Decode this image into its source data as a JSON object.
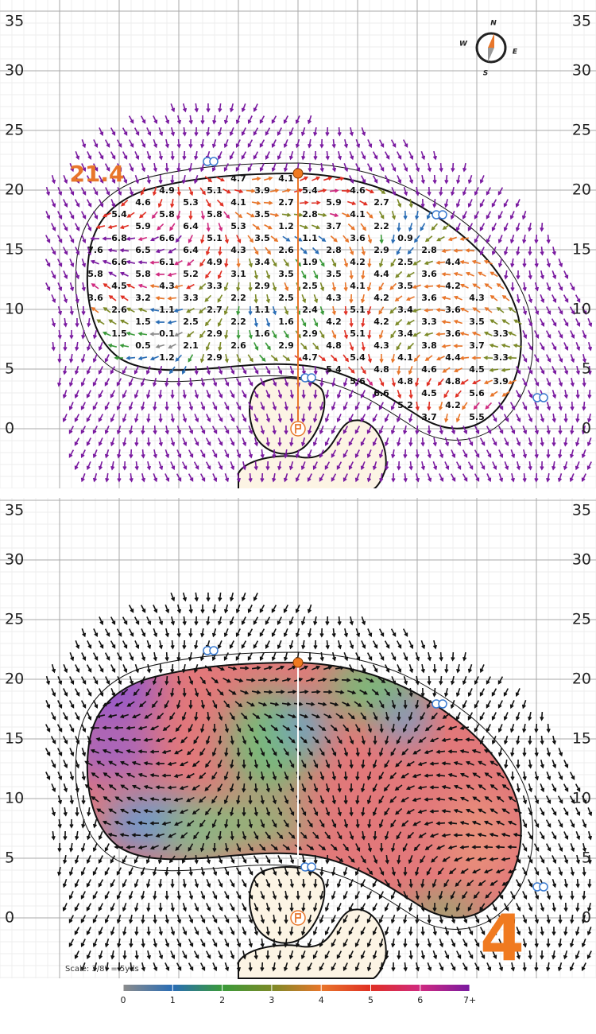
{
  "hole_number": "4",
  "pin_distance": "21.4",
  "scale_note": "Scale: 3/8\" = 5yds",
  "compass": {
    "n": "N",
    "e": "E",
    "s": "S",
    "w": "W"
  },
  "y_axis": {
    "ticks": [
      0,
      5,
      10,
      15,
      20,
      25,
      30,
      35
    ]
  },
  "slope_labels": [
    [
      "4.7",
      "4.1"
    ],
    [
      "4.9",
      "5.1",
      "3.9",
      "5.4",
      "4.6"
    ],
    [
      "4.6",
      "5.3",
      "4.1",
      "2.7",
      "5.9",
      "2.7"
    ],
    [
      "5.4",
      "5.8",
      "5.8",
      "3.5",
      "2.8",
      "4.1"
    ],
    [
      "5.9",
      "6.4",
      "5.3",
      "1.2",
      "3.7",
      "2.2"
    ],
    [
      "6.8",
      "6.6",
      "5.1",
      "3.5",
      "1.1",
      "3.6",
      "0.9"
    ],
    [
      "7.6",
      "6.5",
      "6.4",
      "4.3",
      "2.6",
      "2.8",
      "2.9",
      "2.8"
    ],
    [
      "6.6",
      "6.1",
      "4.9",
      "3.4",
      "1.9",
      "4.2",
      "2.5",
      "4.4"
    ],
    [
      "5.8",
      "5.8",
      "5.2",
      "3.1",
      "3.5",
      "3.5",
      "4.4",
      "3.6"
    ],
    [
      "4.5",
      "4.3",
      "3.3",
      "2.9",
      "2.5",
      "4.1",
      "3.5",
      "4.2"
    ],
    [
      "3.6",
      "3.2",
      "3.3",
      "2.2",
      "2.5",
      "4.3",
      "4.2",
      "3.6",
      "4.3"
    ],
    [
      "2.6",
      "1.1",
      "2.7",
      "1.1",
      "2.4",
      "5.1",
      "3.4",
      "3.6"
    ],
    [
      "1.5",
      "2.5",
      "2.2",
      "1.6",
      "4.2",
      "4.2",
      "3.3",
      "3.5"
    ],
    [
      "1.5",
      "0.1",
      "2.9",
      "1.6",
      "2.9",
      "5.1",
      "3.4",
      "3.6",
      "3.3"
    ],
    [
      "0.5",
      "2.1",
      "2.6",
      "2.9",
      "4.8",
      "4.3",
      "3.8",
      "3.7"
    ],
    [
      "1.2",
      "2.9",
      "4.7",
      "5.4",
      "4.1",
      "4.4",
      "3.3"
    ],
    [
      "5.4",
      "4.8",
      "4.6",
      "4.5"
    ],
    [
      "5.6",
      "4.8",
      "4.8",
      "3.9"
    ],
    [
      "6.6",
      "4.5",
      "5.6"
    ],
    [
      "5.2",
      "4.2"
    ],
    [
      "3.7",
      "5.5"
    ]
  ],
  "colorbar": {
    "ticks": [
      0,
      1,
      2,
      3,
      4,
      5,
      6,
      {
        "value": 7,
        "label": "7+"
      }
    ]
  }
}
